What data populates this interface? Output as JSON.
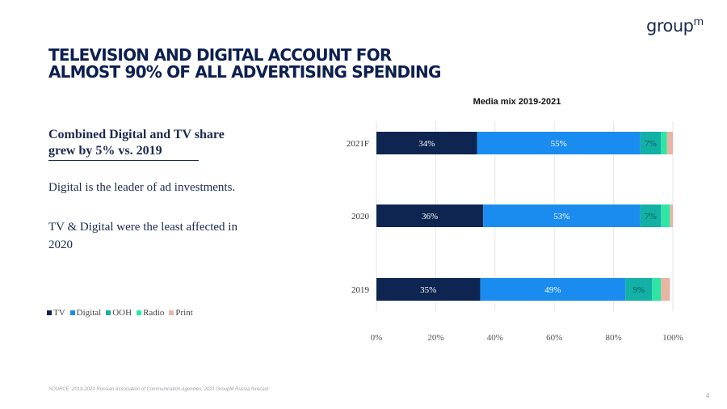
{
  "logo": {
    "text": "group",
    "sup": "m"
  },
  "headline": {
    "line1": "TELEVISION AND DIGITAL ACCOUNT FOR",
    "line2": "ALMOST 90% OF ALL ADVERTISING SPENDING"
  },
  "callout": "Combined Digital and TV share grew by 5% vs. 2019",
  "body": {
    "p1": "Digital is the leader of ad investments.",
    "p2": "TV & Digital were the least affected in 2020"
  },
  "footer": {
    "source": "SOURCE: 2019-2020 Russian Association of Communication Agencies, 2021 GroupM Russia forecast",
    "page": "4"
  },
  "colors": {
    "TV": "#0d2550",
    "Digital": "#1a8cf0",
    "OOH": "#13b0a5",
    "Radio": "#2ee5a4",
    "Print": "#e8b4a3"
  },
  "chart_data": {
    "type": "bar",
    "orientation": "horizontal",
    "stacked": true,
    "title": "Media mix 2019-2021",
    "categories": [
      "2021F",
      "2020",
      "2019"
    ],
    "series": [
      {
        "name": "TV",
        "values": [
          34,
          36,
          35
        ],
        "labels": [
          "34%",
          "36%",
          "35%"
        ]
      },
      {
        "name": "Digital",
        "values": [
          55,
          53,
          49
        ],
        "labels": [
          "55%",
          "53%",
          "49%"
        ]
      },
      {
        "name": "OOH",
        "values": [
          7,
          7,
          9
        ],
        "labels": [
          "7%",
          "7%",
          "9%"
        ]
      },
      {
        "name": "Radio",
        "values": [
          2,
          3,
          3
        ],
        "labels": [
          "",
          "",
          ""
        ]
      },
      {
        "name": "Print",
        "values": [
          2,
          1,
          3
        ],
        "labels": [
          "",
          "",
          ""
        ]
      }
    ],
    "xlim": [
      0,
      100
    ],
    "xticks": [
      "0%",
      "20%",
      "40%",
      "60%",
      "80%",
      "100%"
    ],
    "grid": true,
    "legend": "bottom-left"
  }
}
